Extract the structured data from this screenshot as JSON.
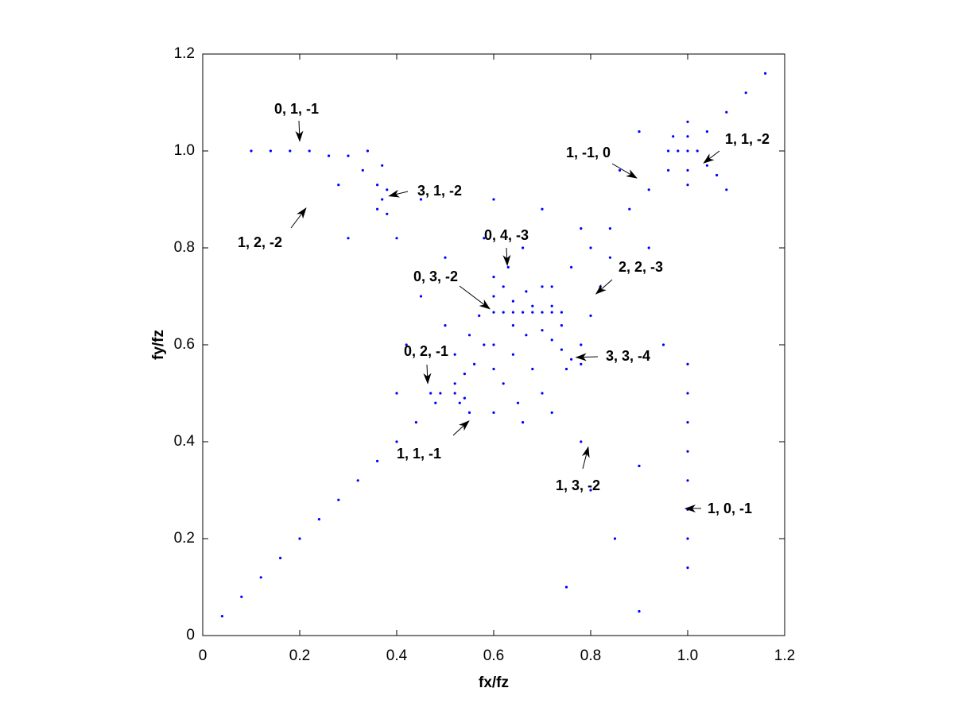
{
  "chart_data": {
    "type": "scatter",
    "x_label": "fx/fz",
    "y_label": "fy/fz",
    "color": "#0000ff",
    "xlim": [
      0,
      1.2
    ],
    "ylim": [
      0,
      1.2
    ],
    "xticks": [
      0,
      0.2,
      0.4,
      0.6,
      0.8,
      {
        "value": 1,
        "label": "1.0"
      },
      1.2
    ],
    "yticks": [
      0,
      0.2,
      0.4,
      0.6,
      0.8,
      {
        "value": 1,
        "label": "1.0"
      },
      1.2
    ],
    "x": [
      0.04,
      0.08,
      0.12,
      0.16,
      0.2,
      0.24,
      0.28,
      0.32,
      0.36,
      0.4,
      0.44,
      0.48,
      0.52,
      0.56,
      0.6,
      0.64,
      0.68,
      0.72,
      0.76,
      0.8,
      0.84,
      0.88,
      0.92,
      0.96,
      1.0,
      1.04,
      1.08,
      1.12,
      1.16,
      0.6,
      0.62,
      0.64,
      0.66,
      0.68,
      0.7,
      0.72,
      0.74,
      0.6,
      0.62,
      0.64,
      0.7,
      0.72,
      0.74,
      0.76,
      0.78,
      0.667,
      0.667,
      1,
      1,
      1,
      1,
      0.96,
      0.98,
      1.02,
      1.04,
      1.06,
      1.08,
      0.97,
      1,
      1,
      1,
      1,
      1,
      1,
      1,
      1,
      0.47,
      0.49,
      0.52,
      0.54,
      0.53,
      0.55,
      0.1,
      0.14,
      0.18,
      0.22,
      0.26,
      0.3,
      0.34,
      0.33,
      0.37,
      0.38,
      0.36,
      0.36,
      0.37,
      0.38,
      0.4,
      0.58,
      0.6,
      0.62,
      0.64,
      0.55,
      0.57,
      0.6,
      0.63,
      0.66,
      0.7,
      0.72,
      0.74,
      0.68,
      0.65,
      0.7,
      0.75,
      0.78,
      0.8,
      0.52,
      0.54,
      0.5,
      0.6,
      0.66,
      0.72,
      0.82,
      0.84,
      0.58,
      0.5,
      0.45,
      0.7,
      0.78,
      0.86,
      0.9,
      0.6,
      0.45,
      0.3,
      0.28,
      0.8,
      0.85,
      0.78,
      0.9,
      0.95,
      0.92,
      0.75,
      0.9,
      0.4,
      0.42
    ],
    "values": [
      0.04,
      0.08,
      0.12,
      0.16,
      0.2,
      0.24,
      0.28,
      0.32,
      0.36,
      0.4,
      0.44,
      0.48,
      0.52,
      0.56,
      0.6,
      0.64,
      0.68,
      0.72,
      0.76,
      0.8,
      0.84,
      0.88,
      0.92,
      0.96,
      1.0,
      1.04,
      1.08,
      1.12,
      1.16,
      0.667,
      0.667,
      0.667,
      0.667,
      0.667,
      0.667,
      0.667,
      0.667,
      0.74,
      0.72,
      0.69,
      0.63,
      0.61,
      0.59,
      0.57,
      0.56,
      0.62,
      0.71,
      0.93,
      0.96,
      1.03,
      1.06,
      1.0,
      1.0,
      1.0,
      0.97,
      0.95,
      0.92,
      1.03,
      0.14,
      0.2,
      0.26,
      0.32,
      0.38,
      0.44,
      0.5,
      0.56,
      0.5,
      0.5,
      0.5,
      0.49,
      0.48,
      0.46,
      1.0,
      1.0,
      1.0,
      1.0,
      0.99,
      0.99,
      1.0,
      0.96,
      0.97,
      0.92,
      0.88,
      0.93,
      0.9,
      0.87,
      0.82,
      0.6,
      0.55,
      0.52,
      0.58,
      0.62,
      0.66,
      0.7,
      0.76,
      0.8,
      0.72,
      0.68,
      0.64,
      0.55,
      0.48,
      0.5,
      0.55,
      0.6,
      0.66,
      0.58,
      0.54,
      0.64,
      0.46,
      0.44,
      0.46,
      0.72,
      0.78,
      0.82,
      0.78,
      0.7,
      0.88,
      0.84,
      0.96,
      1.04,
      0.9,
      0.9,
      0.82,
      0.93,
      0.3,
      0.2,
      0.4,
      0.35,
      0.6,
      0.8,
      0.1,
      0.05,
      0.5,
      0.6
    ],
    "annotations": [
      {
        "text": "0, 1, -1",
        "x": 0.2,
        "y": 1.02
      },
      {
        "text": "1, 2, -2",
        "x": 0.213,
        "y": 0.882
      },
      {
        "text": "3, 1, -2",
        "x": 0.384,
        "y": 0.907
      },
      {
        "text": "0, 4, -3",
        "x": 0.628,
        "y": 0.764
      },
      {
        "text": "0, 3, -2",
        "x": 0.592,
        "y": 0.674
      },
      {
        "text": "1, -1, 0",
        "x": 0.895,
        "y": 0.944
      },
      {
        "text": "1, 1, -2",
        "x": 1.033,
        "y": 0.975
      },
      {
        "text": "2, 2, -3",
        "x": 0.811,
        "y": 0.705
      },
      {
        "text": "3, 3, -4",
        "x": 0.77,
        "y": 0.574
      },
      {
        "text": "0, 2, -1",
        "x": 0.464,
        "y": 0.52
      },
      {
        "text": "1, 1, -1",
        "x": 0.549,
        "y": 0.443
      },
      {
        "text": "1, 3, -2",
        "x": 0.795,
        "y": 0.389
      },
      {
        "text": "1, 0, -1",
        "x": 0.995,
        "y": 0.262
      }
    ]
  }
}
